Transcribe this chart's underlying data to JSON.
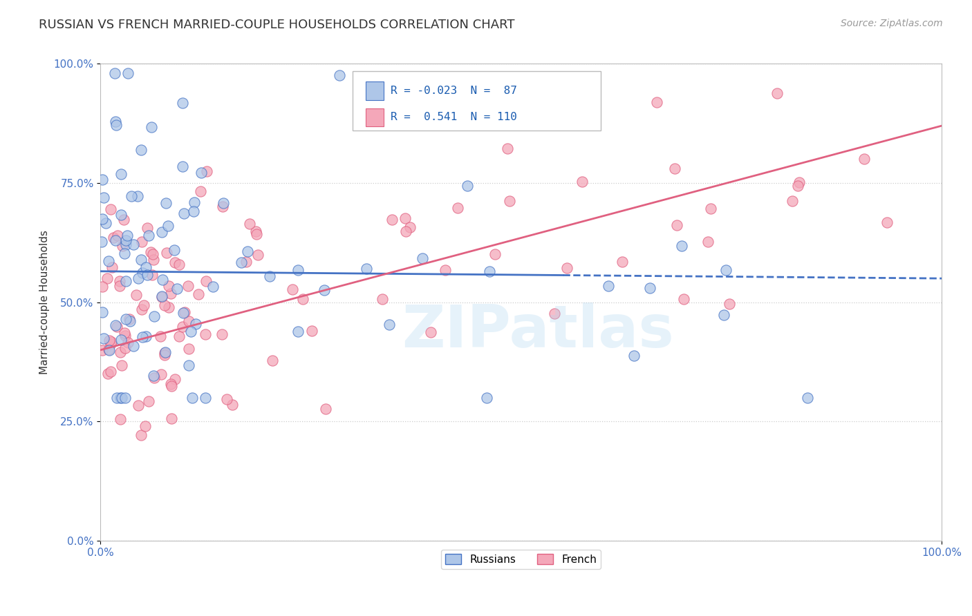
{
  "title": "RUSSIAN VS FRENCH MARRIED-COUPLE HOUSEHOLDS CORRELATION CHART",
  "source": "Source: ZipAtlas.com",
  "ylabel": "Married-couple Households",
  "xmin": 0.0,
  "xmax": 1.0,
  "ymin": 0.0,
  "ymax": 1.0,
  "yticks": [
    0.0,
    0.25,
    0.5,
    0.75,
    1.0
  ],
  "ytick_labels": [
    "0.0%",
    "25.0%",
    "50.0%",
    "75.0%",
    "100.0%"
  ],
  "xtick_labels": [
    "0.0%",
    "100.0%"
  ],
  "russian_color": "#aec6e8",
  "french_color": "#f4a7b9",
  "russian_R": -0.023,
  "russian_N": 87,
  "french_R": 0.541,
  "french_N": 110,
  "watermark": "ZIPatlas",
  "legend_label_russian": "Russians",
  "legend_label_french": "French",
  "russian_line_color": "#4472c4",
  "french_line_color": "#e06080",
  "grid_color": "#cccccc",
  "background_color": "#ffffff",
  "title_fontsize": 13,
  "axis_label_fontsize": 11,
  "tick_fontsize": 11,
  "source_fontsize": 10
}
